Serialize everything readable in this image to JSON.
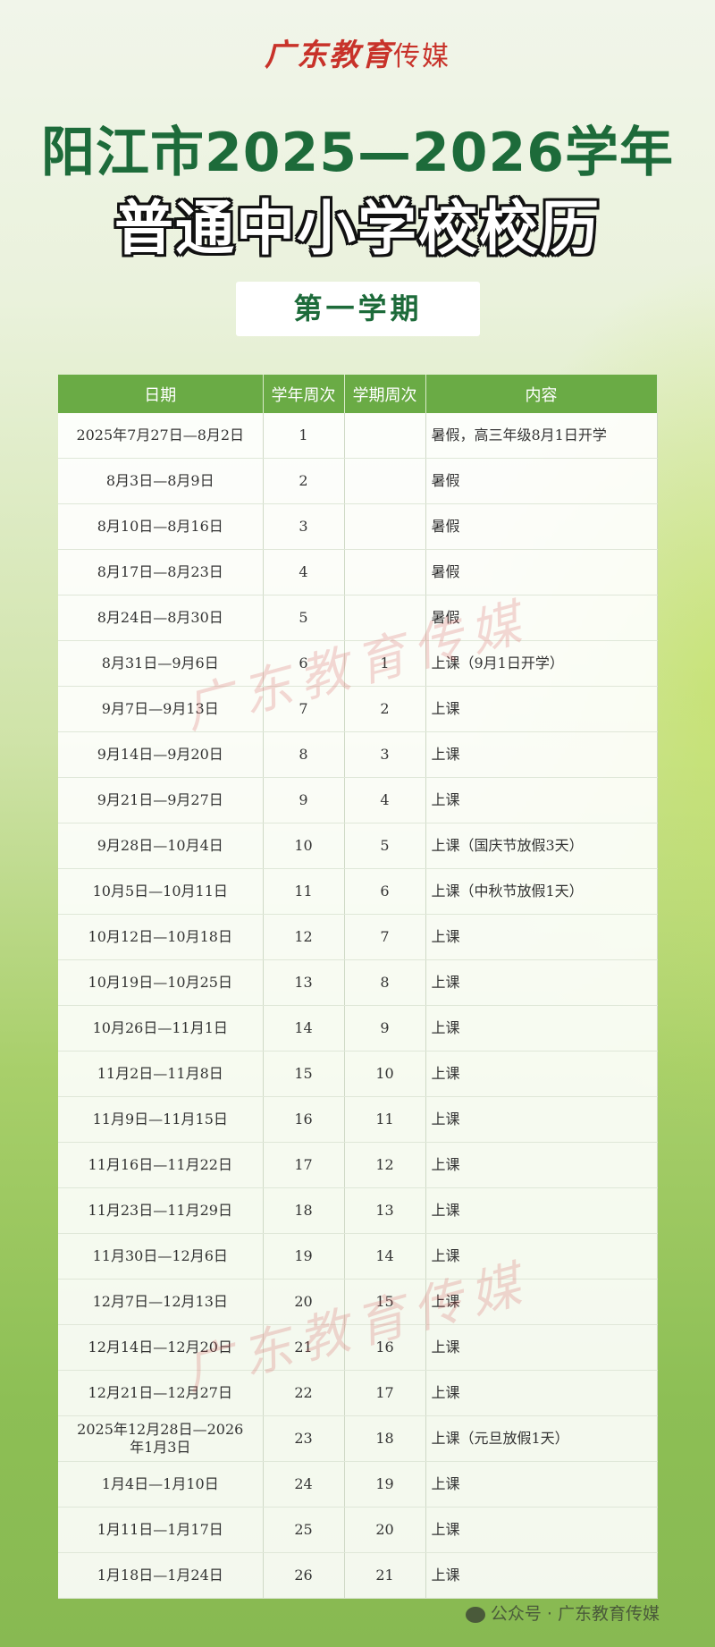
{
  "logo": {
    "main": "广东教育",
    "sub": "传媒"
  },
  "title_line1": "阳江市2025—2026学年",
  "title_line2": "普通中小学校校历",
  "semester_badge": "第一学期",
  "table": {
    "headers": [
      "日期",
      "学年周次",
      "学期周次",
      "内容"
    ],
    "rows": [
      [
        "2025年7月27日—8月2日",
        "1",
        "",
        "暑假，高三年级8月1日开学"
      ],
      [
        "8月3日—8月9日",
        "2",
        "",
        "暑假"
      ],
      [
        "8月10日—8月16日",
        "3",
        "",
        "暑假"
      ],
      [
        "8月17日—8月23日",
        "4",
        "",
        "暑假"
      ],
      [
        "8月24日—8月30日",
        "5",
        "",
        "暑假"
      ],
      [
        "8月31日—9月6日",
        "6",
        "1",
        "上课（9月1日开学）"
      ],
      [
        "9月7日—9月13日",
        "7",
        "2",
        "上课"
      ],
      [
        "9月14日—9月20日",
        "8",
        "3",
        "上课"
      ],
      [
        "9月21日—9月27日",
        "9",
        "4",
        "上课"
      ],
      [
        "9月28日—10月4日",
        "10",
        "5",
        "上课（国庆节放假3天）"
      ],
      [
        "10月5日—10月11日",
        "11",
        "6",
        "上课（中秋节放假1天）"
      ],
      [
        "10月12日—10月18日",
        "12",
        "7",
        "上课"
      ],
      [
        "10月19日—10月25日",
        "13",
        "8",
        "上课"
      ],
      [
        "10月26日—11月1日",
        "14",
        "9",
        "上课"
      ],
      [
        "11月2日—11月8日",
        "15",
        "10",
        "上课"
      ],
      [
        "11月9日—11月15日",
        "16",
        "11",
        "上课"
      ],
      [
        "11月16日—11月22日",
        "17",
        "12",
        "上课"
      ],
      [
        "11月23日—11月29日",
        "18",
        "13",
        "上课"
      ],
      [
        "11月30日—12月6日",
        "19",
        "14",
        "上课"
      ],
      [
        "12月7日—12月13日",
        "20",
        "15",
        "上课"
      ],
      [
        "12月14日—12月20日",
        "21",
        "16",
        "上课"
      ],
      [
        "12月21日—12月27日",
        "22",
        "17",
        "上课"
      ],
      [
        "2025年12月28日—2026年1月3日",
        "23",
        "18",
        "上课（元旦放假1天）"
      ],
      [
        "1月4日—1月10日",
        "24",
        "19",
        "上课"
      ],
      [
        "1月11日—1月17日",
        "25",
        "20",
        "上课"
      ],
      [
        "1月18日—1月24日",
        "26",
        "21",
        "上课"
      ]
    ]
  },
  "watermark": "广东教育传媒",
  "footer": {
    "icon": "wechat-icon",
    "text": "公众号 · 广东教育传媒"
  },
  "colors": {
    "header_green": "#6aab45",
    "title_green": "#1d6b3a",
    "logo_red": "#c8322a"
  }
}
